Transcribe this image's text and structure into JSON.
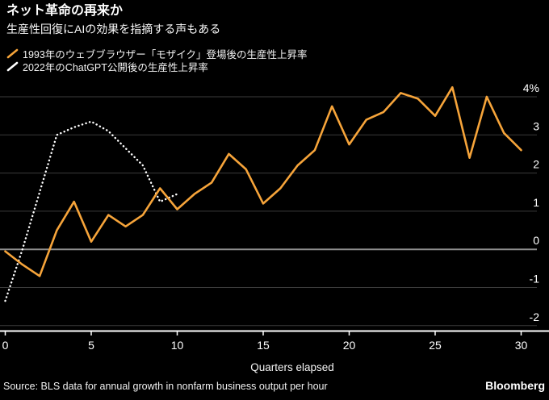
{
  "header": {
    "title": "ネット革命の再来か",
    "subtitle": "生産性回復にAIの効果を指摘する声もある"
  },
  "legend": {
    "items": [
      {
        "label": "1993年のウェブブラウザー「モザイク」登場後の生産性上昇率",
        "color": "#F6A43A",
        "style": "solid"
      },
      {
        "label": "2022年のChatGPT公開後の生産性上昇率",
        "color": "#FFFFFF",
        "style": "dotted"
      }
    ]
  },
  "chart_data": {
    "type": "line",
    "title": "ネット革命の再来か",
    "subtitle": "生産性回復にAIの効果を指摘する声もある",
    "xlabel": "Quarters elapsed",
    "ylabel": "",
    "xlim": [
      0,
      31.6
    ],
    "ylim": [
      -2,
      4.4
    ],
    "grid": "horizontal",
    "legend_position": "top-left",
    "x_ticks": [
      0,
      5,
      10,
      15,
      20,
      25,
      30
    ],
    "y_tick_labels": [
      "4%",
      "3",
      "2",
      "1",
      "0",
      "-1",
      "-2"
    ],
    "y_tick_values": [
      4,
      3,
      2,
      1,
      0,
      -1,
      -2
    ],
    "series": [
      {
        "name": "1993年のウェブブラウザー「モザイク」登場後の生産性上昇率",
        "color": "#F6A43A",
        "style": "solid",
        "x": [
          0,
          1,
          2,
          3,
          4,
          5,
          6,
          7,
          8,
          9,
          10,
          11,
          12,
          13,
          14,
          15,
          16,
          17,
          18,
          19,
          20,
          21,
          22,
          23,
          24,
          25,
          26,
          27,
          28,
          29,
          30
        ],
        "values": [
          -0.05,
          -0.4,
          -0.7,
          0.5,
          1.25,
          0.2,
          0.9,
          0.6,
          0.9,
          1.6,
          1.05,
          1.45,
          1.75,
          2.5,
          2.1,
          1.2,
          1.6,
          2.2,
          2.6,
          3.75,
          2.75,
          3.4,
          3.6,
          4.1,
          3.95,
          3.5,
          4.25,
          2.4,
          4.0,
          3.05,
          2.6
        ]
      },
      {
        "name": "2022年のChatGPT公開後の生産性上昇率",
        "color": "#FFFFFF",
        "style": "dotted",
        "x": [
          0,
          1,
          2,
          3,
          4,
          5,
          6,
          7,
          8,
          9,
          10
        ],
        "values": [
          -1.35,
          0.0,
          1.5,
          3.0,
          3.2,
          3.35,
          3.1,
          2.65,
          2.2,
          1.25,
          1.45
        ]
      }
    ]
  },
  "footer": {
    "source": "Source: BLS data for annual growth in nonfarm business output per hour",
    "brand": "Bloomberg"
  },
  "colors": {
    "background": "#000000",
    "grid": "#3B3B3B",
    "zero_line": "#8F8F8F",
    "axis": "#FFFFFF",
    "tick_text": "#FFFFFF",
    "accent_orange": "#F6A43A"
  }
}
